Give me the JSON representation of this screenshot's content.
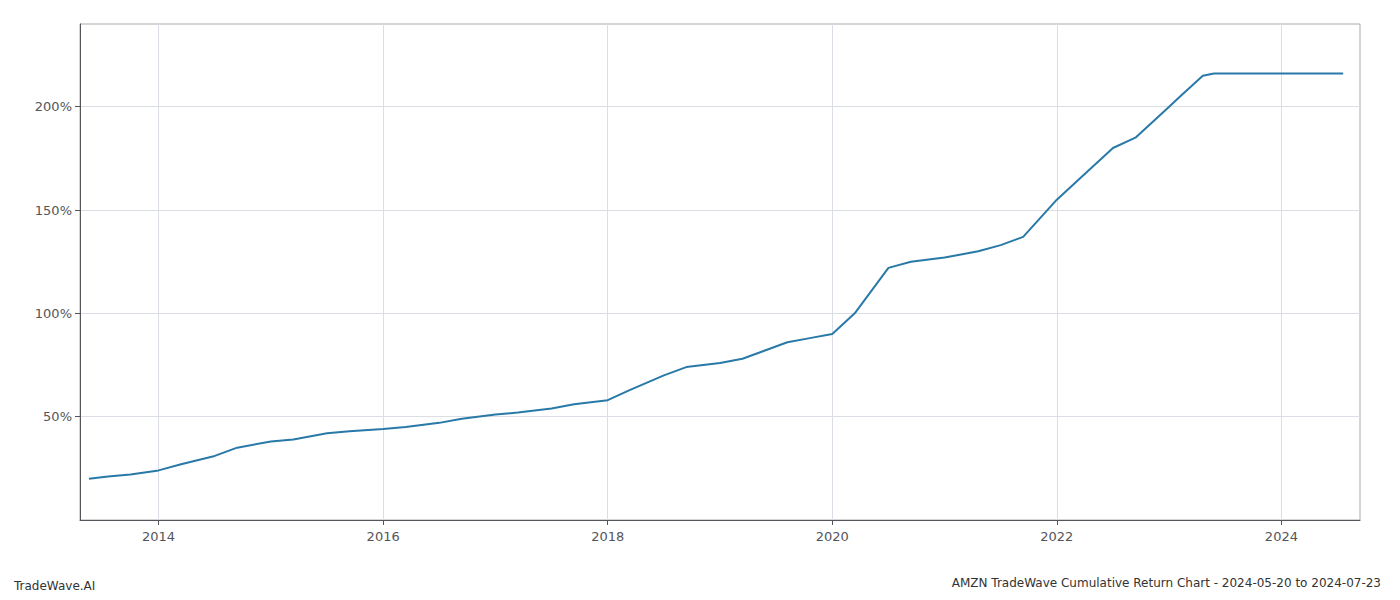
{
  "chart_data": {
    "type": "line",
    "title": "AMZN TradeWave Cumulative Return Chart - 2024-05-20 to 2024-07-23",
    "annotations": [
      "TradeWave.AI"
    ],
    "x": [
      2013.38,
      2013.55,
      2013.75,
      2014.0,
      2014.2,
      2014.5,
      2014.7,
      2015.0,
      2015.2,
      2015.5,
      2015.7,
      2016.0,
      2016.2,
      2016.5,
      2016.7,
      2017.0,
      2017.2,
      2017.5,
      2017.7,
      2018.0,
      2018.2,
      2018.5,
      2018.7,
      2019.0,
      2019.2,
      2019.4,
      2019.6,
      2019.8,
      2020.0,
      2020.2,
      2020.5,
      2020.7,
      2021.0,
      2021.3,
      2021.5,
      2021.7,
      2022.0,
      2022.2,
      2022.5,
      2022.7,
      2023.0,
      2023.1,
      2023.3,
      2023.4,
      2023.6,
      2023.8,
      2024.0,
      2024.3,
      2024.55
    ],
    "values": [
      20,
      21,
      22,
      24,
      27,
      31,
      35,
      38,
      39,
      42,
      43,
      44,
      45,
      47,
      49,
      51,
      52,
      54,
      56,
      58,
      63,
      70,
      74,
      76,
      78,
      82,
      86,
      88,
      90,
      100,
      122,
      125,
      127,
      130,
      133,
      137,
      155,
      165,
      180,
      185,
      200,
      205,
      215,
      216,
      216,
      216,
      216,
      216,
      216
    ],
    "color": "#2979a8",
    "xlim": [
      2013.3,
      2024.7
    ],
    "xticks": [
      2014,
      2016,
      2018,
      2020,
      2022,
      2024
    ],
    "ylim": [
      0,
      240
    ],
    "yticks": [
      {
        "value": 50,
        "label": "50%"
      },
      {
        "value": 100,
        "label": "100%"
      },
      {
        "value": 150,
        "label": "150%"
      },
      {
        "value": 200,
        "label": "200%"
      }
    ],
    "grid": true
  }
}
